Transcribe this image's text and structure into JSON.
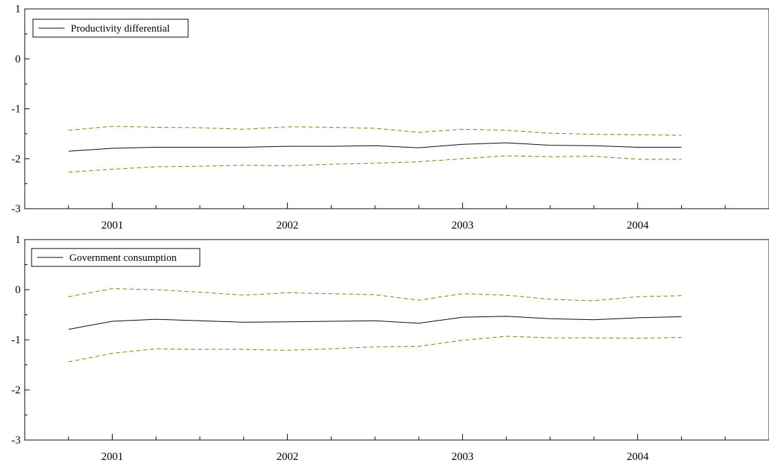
{
  "chart_data": [
    {
      "type": "line",
      "legend": [
        "Productivity differential"
      ],
      "legend_position": "top-left",
      "ylim": [
        -3,
        1
      ],
      "yticks": [
        1,
        0,
        -1,
        -2,
        -3
      ],
      "ytick_labels": [
        "1",
        "0",
        "-1",
        "-2",
        "-3"
      ],
      "xlim": [
        2000.5,
        2004.75
      ],
      "xticks": [
        2001,
        2002,
        2003,
        2004
      ],
      "xtick_labels": [
        "2001",
        "2002",
        "2003",
        "2004"
      ],
      "x": [
        2000.75,
        2001.0,
        2001.25,
        2001.5,
        2001.75,
        2002.0,
        2002.25,
        2002.5,
        2002.75,
        2003.0,
        2003.25,
        2003.5,
        2003.75,
        2004.0,
        2004.25
      ],
      "series": [
        {
          "name": "Productivity differential",
          "style": "solid",
          "color": "#000000",
          "values": [
            -1.85,
            -1.79,
            -1.77,
            -1.77,
            -1.77,
            -1.75,
            -1.75,
            -1.74,
            -1.78,
            -1.71,
            -1.68,
            -1.73,
            -1.74,
            -1.77,
            -1.77
          ]
        },
        {
          "style": "dashed",
          "color": "#7a7a00",
          "values": [
            -1.43,
            -1.35,
            -1.37,
            -1.38,
            -1.41,
            -1.36,
            -1.37,
            -1.39,
            -1.47,
            -1.41,
            -1.43,
            -1.49,
            -1.51,
            -1.52,
            -1.53
          ]
        },
        {
          "style": "dashed",
          "color": "#7a7a00",
          "values": [
            -2.27,
            -2.21,
            -2.16,
            -2.15,
            -2.13,
            -2.14,
            -2.11,
            -2.09,
            -2.06,
            -2.0,
            -1.94,
            -1.96,
            -1.95,
            -2.01,
            -2.01
          ]
        }
      ]
    },
    {
      "type": "line",
      "legend": [
        "Government consumption"
      ],
      "legend_position": "top-left",
      "ylim": [
        -3,
        1
      ],
      "yticks": [
        1,
        0,
        -1,
        -2,
        -3
      ],
      "ytick_labels": [
        "1",
        "0",
        "-1",
        "-2",
        "-3"
      ],
      "xlim": [
        2000.5,
        2004.75
      ],
      "xticks": [
        2001,
        2002,
        2003,
        2004
      ],
      "xtick_labels": [
        "2001",
        "2002",
        "2003",
        "2004"
      ],
      "x": [
        2000.75,
        2001.0,
        2001.25,
        2001.5,
        2001.75,
        2002.0,
        2002.25,
        2002.5,
        2002.75,
        2003.0,
        2003.25,
        2003.5,
        2003.75,
        2004.0,
        2004.25
      ],
      "series": [
        {
          "name": "Government consumption",
          "style": "solid",
          "color": "#000000",
          "values": [
            -0.79,
            -0.63,
            -0.59,
            -0.62,
            -0.65,
            -0.64,
            -0.63,
            -0.62,
            -0.67,
            -0.55,
            -0.53,
            -0.58,
            -0.6,
            -0.56,
            -0.54
          ]
        },
        {
          "style": "dashed",
          "color": "#7a7a00",
          "values": [
            -0.14,
            0.02,
            0.0,
            -0.05,
            -0.11,
            -0.06,
            -0.08,
            -0.1,
            -0.21,
            -0.08,
            -0.11,
            -0.19,
            -0.22,
            -0.14,
            -0.12
          ]
        },
        {
          "style": "dashed",
          "color": "#7a7a00",
          "values": [
            -1.44,
            -1.27,
            -1.18,
            -1.19,
            -1.19,
            -1.21,
            -1.18,
            -1.14,
            -1.13,
            -1.01,
            -0.93,
            -0.96,
            -0.96,
            -0.97,
            -0.95
          ]
        }
      ]
    }
  ]
}
